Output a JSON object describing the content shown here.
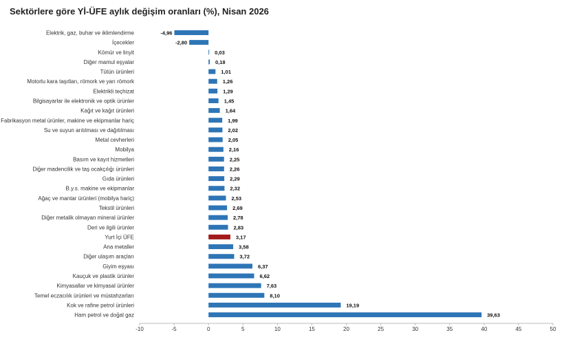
{
  "chart_data": {
    "type": "bar",
    "orientation": "horizontal",
    "title": "Sektörlere göre Yİ-ÜFE aylık değişim oranları (%), Nisan 2026",
    "categories": [
      "Elektrik, gaz, buhar ve iklimlendirme",
      "İçecekler",
      "Kömür ve linyit",
      "Diğer mamul eşyalar",
      "Tütün ürünleri",
      "Motorlu kara taşıtları, römork ve yarı römork",
      "Elektrikli teçhizat",
      "Bilgisayarlar ile elektronik ve optik ürünler",
      "Kağıt ve kağıt ürünleri",
      "Fabrikasyon metal ürünler, makine ve ekipmanlar hariç",
      "Su ve suyun arıtılması ve dağıtılması",
      "Metal cevherleri",
      "Mobilya",
      "Basım ve kayıt hizmetleri",
      "Diğer madencilik ve taş ocakçılığı ürünleri",
      "Gıda ürünleri",
      "B.y.s. makine ve ekipmanlar",
      "Ağaç ve mantar ürünleri (mobilya hariç)",
      "Tekstil ürünleri",
      "Diğer metalik olmayan mineral ürünler",
      "Deri ve ilgili ürünler",
      "Yurt İçi ÜFE",
      "Ana metaller",
      "Diğer ulaşım araçları",
      "Giyim eşyası",
      "Kauçuk ve plastik ürünler",
      "Kimyasallar ve kimyasal ürünler",
      "Temel eczacılık ürünleri ve müstahzarları",
      "Kok ve rafine petrol ürünleri",
      "Ham petrol ve doğal gaz"
    ],
    "values": [
      -4.96,
      -2.8,
      0.03,
      0.18,
      1.01,
      1.26,
      1.29,
      1.45,
      1.64,
      1.99,
      2.02,
      2.05,
      2.16,
      2.25,
      2.26,
      2.29,
      2.32,
      2.53,
      2.69,
      2.78,
      2.83,
      3.17,
      3.58,
      3.72,
      6.37,
      6.62,
      7.63,
      8.1,
      19.19,
      39.63
    ],
    "value_labels": [
      "-4,96",
      "-2,80",
      "0,03",
      "0,18",
      "1,01",
      "1,26",
      "1,29",
      "1,45",
      "1,64",
      "1,99",
      "2,02",
      "2,05",
      "2,16",
      "2,25",
      "2,26",
      "2,29",
      "2,32",
      "2,53",
      "2,69",
      "2,78",
      "2,83",
      "3,17",
      "3,58",
      "3,72",
      "6,37",
      "6,62",
      "7,63",
      "8,10",
      "19,19",
      "39,63"
    ],
    "xlim": [
      -10,
      50
    ],
    "xticks": [
      -10,
      -5,
      0,
      5,
      10,
      15,
      20,
      25,
      30,
      35,
      40,
      45,
      50
    ],
    "grid": false,
    "bar_color": "#2e75b6",
    "highlight_category": "Yurt İçi ÜFE",
    "highlight_color": "#a31a1a"
  }
}
